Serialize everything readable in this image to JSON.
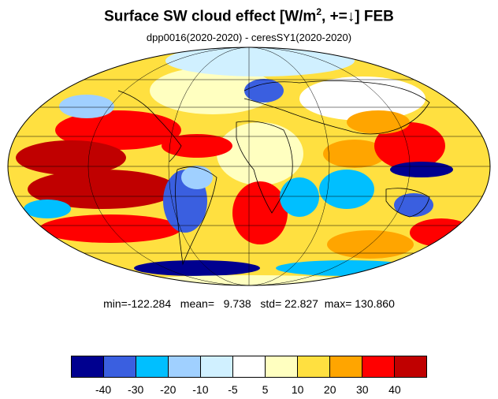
{
  "title": {
    "main": "Surface SW cloud effect [W/m",
    "sup": "2",
    "tail": ", +=↓]  FEB"
  },
  "subtitle": "dpp0016(2020-2020) - ceresSY1(2020-2020)",
  "stats": {
    "min_label": "min=",
    "min": "-122.284",
    "mean_label": "mean=",
    "mean": "9.738",
    "std_label": "std=",
    "std": "22.827",
    "max_label": "max=",
    "max": "130.860"
  },
  "colorbar": {
    "colors": [
      "#00008f",
      "#3a5fe0",
      "#00bfff",
      "#a0d0ff",
      "#d0f0ff",
      "#ffffff",
      "#ffffc0",
      "#ffe040",
      "#ffa500",
      "#ff0000",
      "#c00000"
    ],
    "labels": [
      "-40",
      "-30",
      "-20",
      "-10",
      "-5",
      "5",
      "10",
      "20",
      "30",
      "40"
    ]
  },
  "map": {
    "projection": "Mollweide",
    "regions": [
      {
        "name": "north-pacific-positive",
        "color": "#ff0000"
      },
      {
        "name": "tropical-pacific-positive",
        "color": "#c00000"
      },
      {
        "name": "south-pacific-positive",
        "color": "#ff0000"
      },
      {
        "name": "south-atlantic-positive",
        "color": "#ff0000"
      },
      {
        "name": "indian-ocean-positive",
        "color": "#ffa500"
      },
      {
        "name": "south-america-negative",
        "color": "#3a5fe0"
      },
      {
        "name": "europe-negative",
        "color": "#3a5fe0"
      },
      {
        "name": "maritime-continent-negative",
        "color": "#00008f"
      },
      {
        "name": "southern-ocean-negative",
        "color": "#00008f"
      }
    ]
  }
}
